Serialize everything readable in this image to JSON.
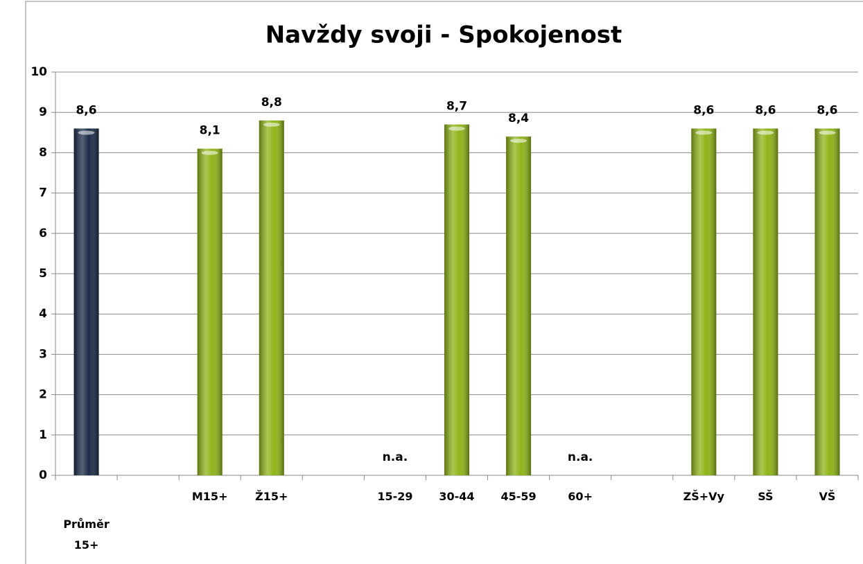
{
  "chart_data": {
    "type": "bar",
    "title": "Navždy svoji - Spokojenost",
    "categories": [
      "Průměr 15+",
      null,
      "M15+",
      "Ž15+",
      null,
      "15-29",
      "30-44",
      "45-59",
      "60+",
      null,
      "ZŠ+Vy",
      "SŠ",
      "VŠ"
    ],
    "values": [
      8.6,
      null,
      8.1,
      8.8,
      null,
      null,
      8.7,
      8.4,
      null,
      null,
      8.6,
      8.6,
      8.6
    ],
    "value_labels": [
      "8,6",
      null,
      "8,1",
      "8,8",
      null,
      "n.a.",
      "8,7",
      "8,4",
      "n.a.",
      null,
      "8,6",
      "8,6",
      "8,6"
    ],
    "colors": [
      "#1b2b48",
      null,
      "#8fb418",
      "#8fb418",
      null,
      null,
      "#8fb418",
      "#8fb418",
      null,
      null,
      "#8fb418",
      "#8fb418",
      "#8fb418"
    ],
    "ylim": [
      0,
      10
    ],
    "yticks": [
      0,
      1,
      2,
      3,
      4,
      5,
      6,
      7,
      8,
      9,
      10
    ],
    "grid": true
  }
}
